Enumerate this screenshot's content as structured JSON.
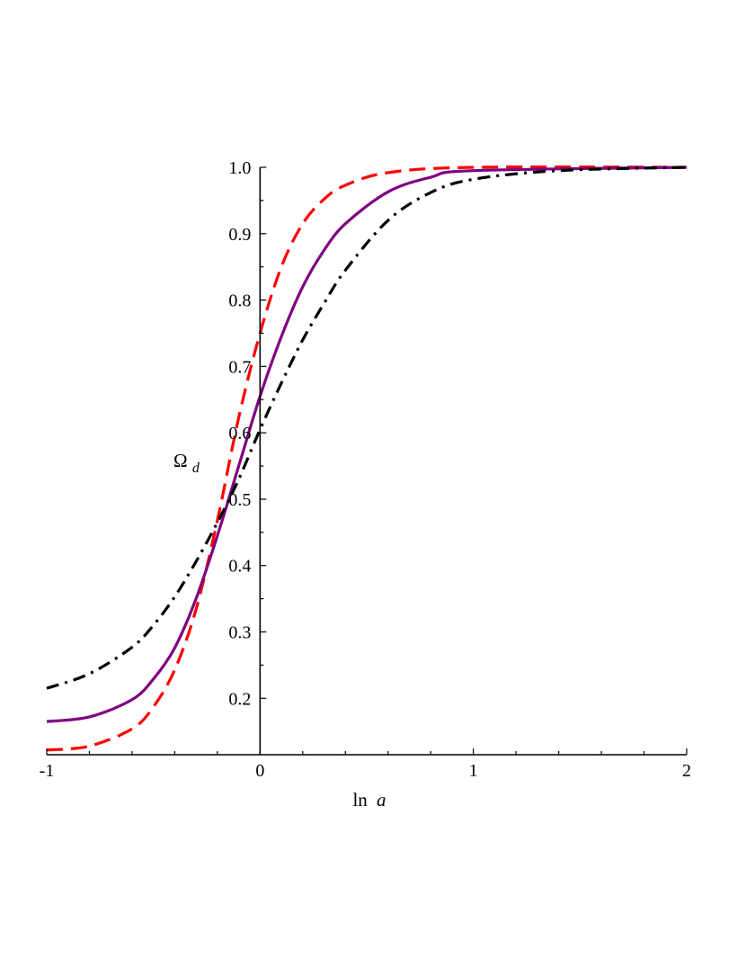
{
  "chart_data": {
    "type": "line",
    "title": "",
    "xlabel": {
      "base": "ln",
      "var": "a"
    },
    "ylabel": {
      "base": "Ω",
      "sub": "d"
    },
    "xlim": [
      -1,
      2
    ],
    "ylim": [
      0.115,
      1.0
    ],
    "x_ticks": [
      -1,
      0,
      1,
      2
    ],
    "x_tick_labels": [
      "-1",
      "0",
      "1",
      "2"
    ],
    "y_ticks": [
      0.2,
      0.3,
      0.4,
      0.5,
      0.6,
      0.7,
      0.8,
      0.9,
      1.0
    ],
    "y_tick_labels": [
      "0.2",
      "0.3",
      "0.4",
      "0.5",
      "0.6",
      "0.7",
      "0.8",
      "0.9",
      "1.0"
    ],
    "grid": false,
    "legend": "none",
    "series": [
      {
        "style": "dash",
        "color": "#ff0000",
        "x": [
          -1,
          -0.8,
          -0.6,
          -0.5,
          -0.4,
          -0.3,
          -0.2,
          -0.1,
          0,
          0.1,
          0.2,
          0.3,
          0.4,
          0.6,
          1.0,
          2.0
        ],
        "y": [
          0.122,
          0.128,
          0.154,
          0.187,
          0.243,
          0.334,
          0.468,
          0.623,
          0.75,
          0.85,
          0.915,
          0.952,
          0.973,
          0.992,
          1.0,
          1.0
        ]
      },
      {
        "style": "solid",
        "color": "#800080",
        "x": [
          -1,
          -0.8,
          -0.6,
          -0.5,
          -0.4,
          -0.3,
          -0.2,
          -0.1,
          0,
          0.1,
          0.2,
          0.3,
          0.4,
          0.6,
          0.8,
          1.0,
          2.0
        ],
        "y": [
          0.165,
          0.172,
          0.198,
          0.229,
          0.276,
          0.35,
          0.445,
          0.55,
          0.655,
          0.745,
          0.82,
          0.875,
          0.915,
          0.963,
          0.985,
          0.995,
          1.0
        ]
      },
      {
        "style": "dashdot",
        "color": "#000000",
        "x": [
          -1,
          -0.8,
          -0.6,
          -0.5,
          -0.4,
          -0.3,
          -0.2,
          -0.1,
          0,
          0.1,
          0.2,
          0.3,
          0.4,
          0.6,
          0.8,
          1.0,
          1.4,
          2.0
        ],
        "y": [
          0.215,
          0.237,
          0.277,
          0.31,
          0.353,
          0.406,
          0.465,
          0.53,
          0.605,
          0.675,
          0.74,
          0.795,
          0.845,
          0.92,
          0.962,
          0.982,
          0.995,
          1.0
        ]
      }
    ]
  }
}
